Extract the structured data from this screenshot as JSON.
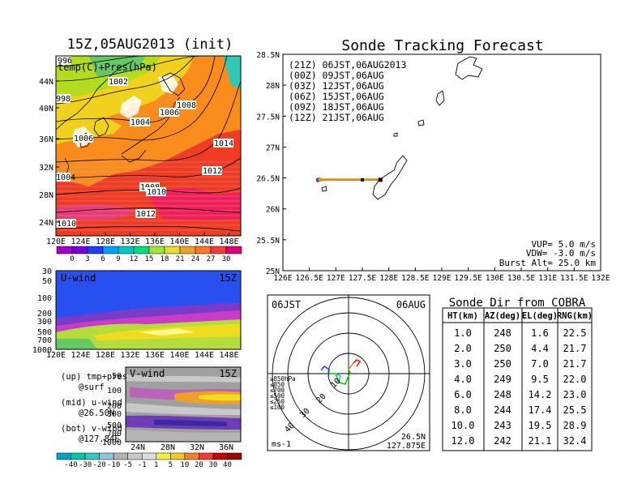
{
  "left": {
    "title": "15Z,05AUG2013 (init)",
    "subtitle": "temp(C)+Pres(hPa)",
    "lat_ticks": [
      "44N",
      "40N",
      "36N",
      "32N",
      "28N",
      "24N"
    ],
    "lon_ticks": [
      "120E",
      "124E",
      "128E",
      "132E",
      "136E",
      "140E",
      "144E",
      "148E"
    ],
    "isobar_labels": [
      "996",
      "998",
      "1002",
      "1004",
      "1006",
      "1006",
      "1008",
      "1014",
      "1012",
      "1004",
      "1008",
      "1010",
      "1012",
      "1010"
    ],
    "temp_colorbar": [
      "0",
      "3",
      "6",
      "9",
      "12",
      "15",
      "18",
      "21",
      "24",
      "27",
      "30"
    ],
    "uwind_title": "U-wind",
    "uwind_time": "15Z",
    "pressure_ticks": [
      "30",
      "50",
      "100",
      "200",
      "300",
      "500",
      "700",
      "1000"
    ],
    "uwind_lon_ticks": [
      "120E",
      "124E",
      "128E",
      "132E",
      "136E",
      "140E",
      "144E",
      "148E"
    ],
    "vwind_title": "V-wind",
    "vwind_time": "15Z",
    "vwind_pressure_ticks": [
      "50",
      "100",
      "200",
      "300",
      "500",
      "700",
      "1000"
    ],
    "vwind_lat_ticks": [
      "24N",
      "28N",
      "32N",
      "36N"
    ],
    "wind_colorbar": [
      "-40",
      "-30",
      "-20",
      "-10",
      "-5",
      "-1",
      "1",
      "5",
      "10",
      "20",
      "30",
      "40"
    ],
    "legend_lines": [
      "(up) tmp+pres",
      "@surf",
      "(mid) u-wind",
      "@26.50N",
      "(bot) v-wind",
      "@127.84E"
    ]
  },
  "track": {
    "title": "Sonde Tracking Forecast",
    "legend": [
      {
        "text": "(21Z) 06JST,06AUG2013",
        "color": "#000000"
      },
      {
        "text": "(00Z) 09JST,06AUG",
        "color": "#a000c8"
      },
      {
        "text": "(03Z) 12JST,06AUG",
        "color": "#1e3cff"
      },
      {
        "text": "(06Z) 15JST,06AUG",
        "color": "#00c800"
      },
      {
        "text": "(09Z) 18JST,06AUG",
        "color": "#e6c800"
      },
      {
        "text": "(12Z) 21JST,06AUG",
        "color": "#f08228"
      }
    ],
    "params": [
      "VUP= 5.0 m/s",
      "VDW= -3.0 m/s",
      "Burst Alt= 25.0 km"
    ]
  },
  "polar": {
    "left_label": "06JST",
    "right_label": "06AUG",
    "legend": [
      {
        "text": "≥850hPa",
        "color": "#ff0000"
      },
      {
        "text": "≤850",
        "color": "#e6c800"
      },
      {
        "text": "≤700",
        "color": "#f08228"
      },
      {
        "text": "≤500",
        "color": "#00c800"
      },
      {
        "text": "≤250",
        "color": "#00c8c8"
      },
      {
        "text": "≤100",
        "color": "#1e3cff"
      }
    ],
    "range_labels": [
      "10",
      "20",
      "30",
      "40"
    ],
    "units": "ms-1",
    "loc_lat": "26.5N",
    "loc_lon": "127.875E"
  },
  "table": {
    "title": "Sonde Dir from COBRA",
    "headers": [
      "HT(km)",
      "AZ(deg)",
      "EL(deg)",
      "RNG(km)"
    ],
    "rows": [
      [
        "1.0",
        "248",
        "1.6",
        "22.5"
      ],
      [
        "2.0",
        "250",
        "4.4",
        "21.7"
      ],
      [
        "3.0",
        "250",
        "7.0",
        "21.7"
      ],
      [
        "4.0",
        "249",
        "9.5",
        "22.0"
      ],
      [
        "6.0",
        "248",
        "14.2",
        "23.0"
      ],
      [
        "8.0",
        "244",
        "17.4",
        "25.5"
      ],
      [
        "10.0",
        "243",
        "19.5",
        "28.9"
      ],
      [
        "12.0",
        "242",
        "21.1",
        "32.4"
      ]
    ]
  },
  "chart_data": {
    "type": "scatter",
    "title": "Sonde Tracking Forecast",
    "xlabel": "",
    "ylabel": "",
    "x_ticks": [
      "126E",
      "126.5E",
      "127E",
      "127.5E",
      "128E",
      "128.5E",
      "129E",
      "129.5E",
      "130E",
      "130.5E",
      "131E",
      "131.5E",
      "132E"
    ],
    "y_ticks": [
      "25N",
      "25.5N",
      "26N",
      "26.5N",
      "27N",
      "27.5N",
      "28N",
      "28.5N"
    ],
    "xlim": [
      126,
      132
    ],
    "ylim": [
      25,
      28.5
    ],
    "series": [
      {
        "name": "(21Z) 06JST,06AUG2013",
        "color": "#000000",
        "x": [
          126.66,
          126.75,
          127.0,
          127.3,
          127.5,
          127.7,
          127.84
        ],
        "y": [
          26.47,
          26.47,
          26.47,
          26.47,
          26.47,
          26.47,
          26.47
        ]
      },
      {
        "name": "(00Z) 09JST,06AUG",
        "color": "#a000c8",
        "x": [
          126.66,
          126.85,
          127.2,
          127.5,
          127.84
        ],
        "y": [
          26.46,
          26.47,
          26.47,
          26.47,
          26.47
        ]
      },
      {
        "name": "(03Z) 12JST,06AUG",
        "color": "#1e3cff",
        "x": [
          126.68,
          126.9,
          127.3,
          127.6,
          127.84
        ],
        "y": [
          26.48,
          26.48,
          26.48,
          26.48,
          26.48
        ]
      },
      {
        "name": "(06Z) 15JST,06AUG",
        "color": "#00c800",
        "x": [
          126.69,
          127.0,
          127.4,
          127.84
        ],
        "y": [
          26.47,
          26.47,
          26.47,
          26.47
        ]
      },
      {
        "name": "(09Z) 18JST,06AUG",
        "color": "#e6c800",
        "x": [
          126.7,
          127.1,
          127.5,
          127.84
        ],
        "y": [
          26.48,
          26.48,
          26.48,
          26.48
        ]
      },
      {
        "name": "(12Z) 21JST,06AUG",
        "color": "#f08228",
        "x": [
          126.71,
          127.2,
          127.84
        ],
        "y": [
          26.47,
          26.47,
          26.47
        ]
      }
    ]
  }
}
